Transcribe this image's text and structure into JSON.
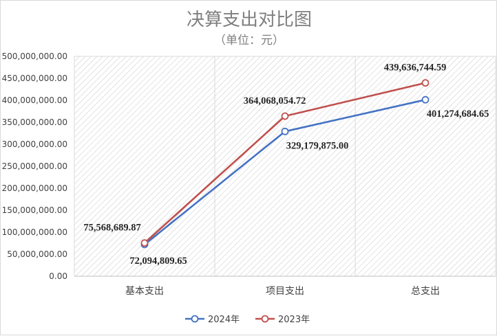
{
  "chart_data": {
    "type": "line",
    "title": "决算支出对比图",
    "subtitle": "（单位：元）",
    "categories": [
      "基本支出",
      "项目支出",
      "总支出"
    ],
    "ylim": [
      0,
      500000000
    ],
    "yticks": [
      "0.00",
      "50,000,000.00",
      "100,000,000.00",
      "150,000,000.00",
      "200,000,000.00",
      "250,000,000.00",
      "300,000,000.00",
      "350,000,000.00",
      "400,000,000.00",
      "450,000,000.00",
      "500,000,000.00"
    ],
    "grid": "hatched-plot-area-with-vertical-gridlines",
    "legend_position": "bottom",
    "series": [
      {
        "name": "2024年",
        "color": "#4472c4",
        "values": [
          72094809.65,
          329179875.0,
          401274684.65
        ],
        "labels": [
          "72,094,809.65",
          "329,179,875.00",
          "401,274,684.65"
        ]
      },
      {
        "name": "2023年",
        "color": "#c0504d",
        "values": [
          75568689.87,
          364068054.72,
          439636744.59
        ],
        "labels": [
          "75,568,689.87",
          "364,068,054.72",
          "439,636,744.59"
        ]
      }
    ]
  }
}
